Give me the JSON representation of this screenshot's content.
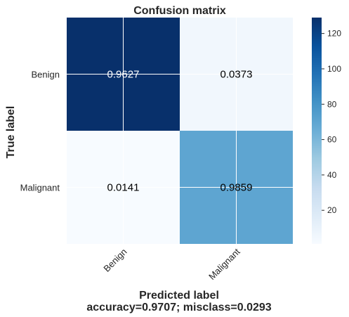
{
  "chart_data": {
    "type": "heatmap",
    "title": "Confusion matrix",
    "xlabel": "Predicted label",
    "xlabel_sub": "accuracy=0.9707; misclass=0.0293",
    "ylabel": "True label",
    "x_categories": [
      "Benign",
      "Malignant"
    ],
    "y_categories": [
      "Benign",
      "Malignant"
    ],
    "values": [
      [
        0.9627,
        0.0373
      ],
      [
        0.0141,
        0.9859
      ]
    ],
    "cell_labels": [
      [
        "0.9627",
        "0.0373"
      ],
      [
        "0.0141",
        "0.9859"
      ]
    ],
    "cell_color_values": [
      [
        129,
        5
      ],
      [
        1,
        70
      ]
    ],
    "colorbar": {
      "ticks": [
        20,
        40,
        60,
        80,
        100,
        120
      ],
      "range": [
        1,
        129
      ],
      "colormap": "Blues"
    },
    "grid": true,
    "colors": {
      "dark": "#08306b",
      "light": "#f7fbff",
      "text_dark": "#000000",
      "text_light": "#ffffff"
    }
  }
}
